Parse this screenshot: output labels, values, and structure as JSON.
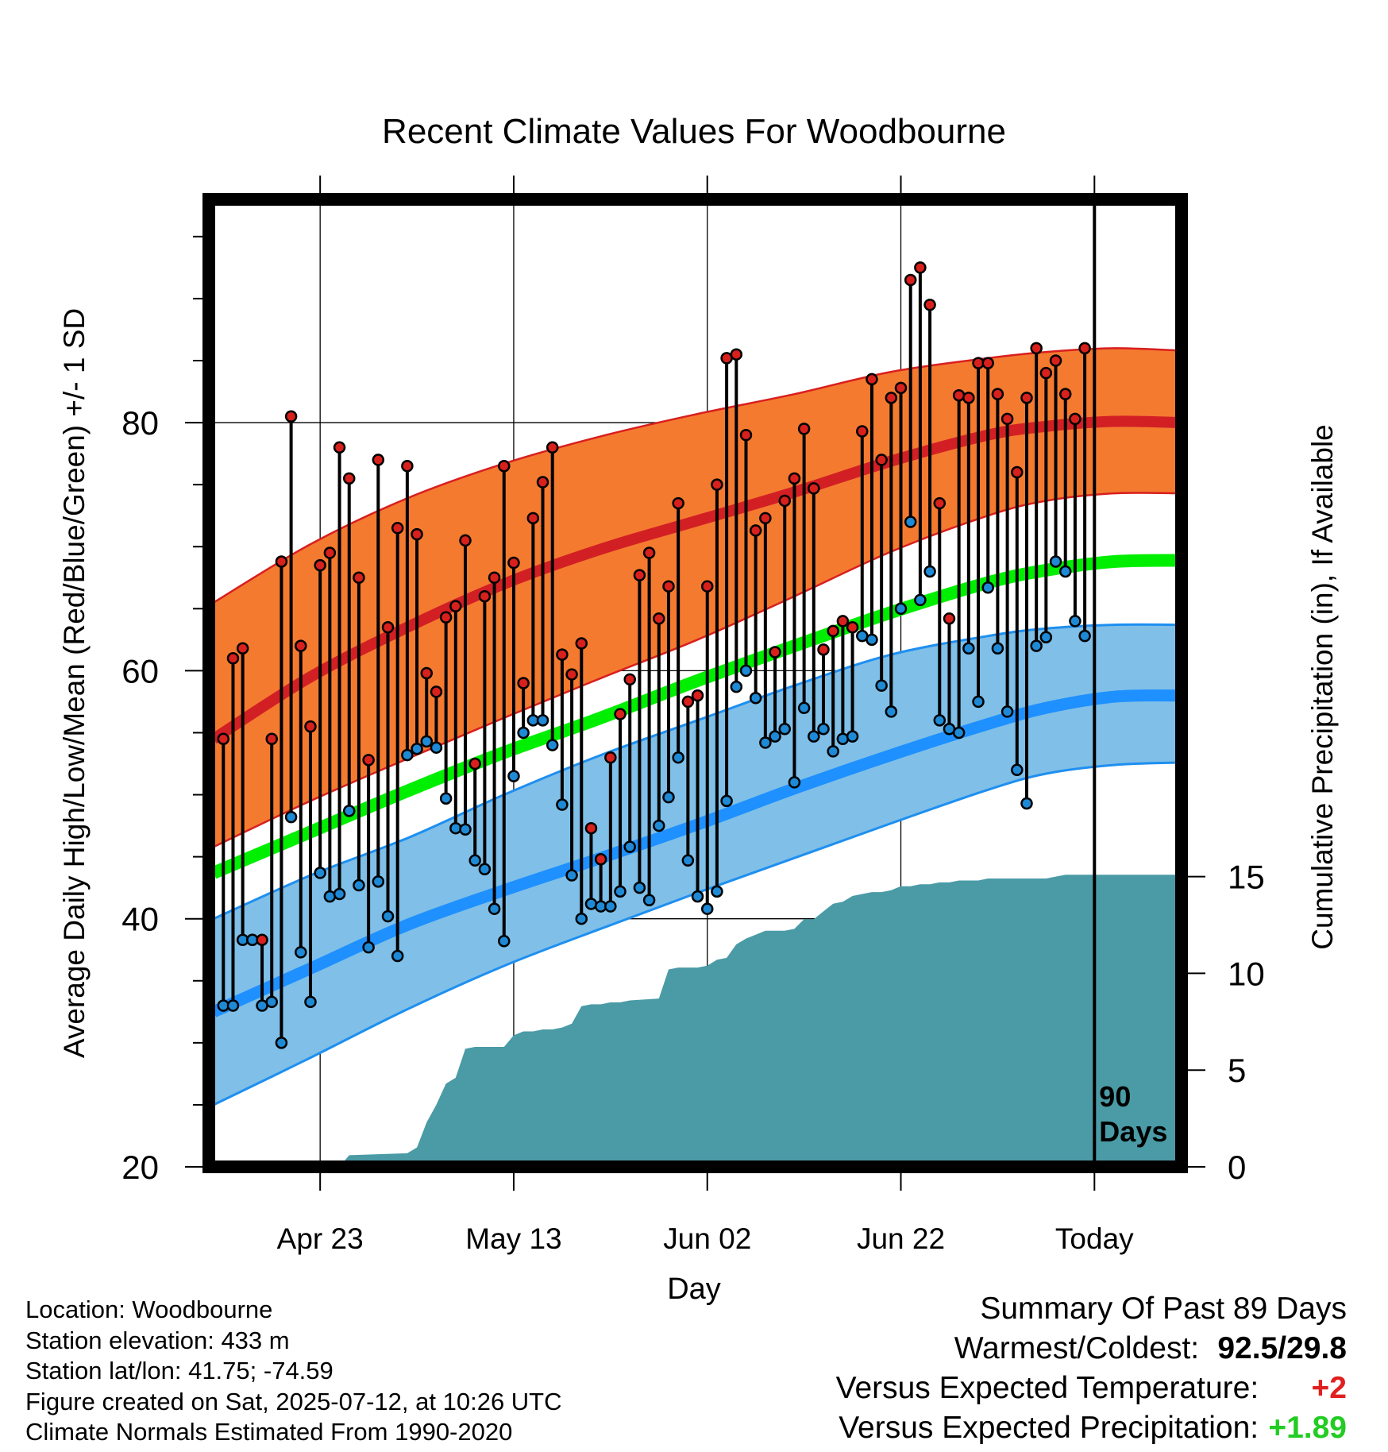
{
  "chart_data": {
    "type": "line",
    "title": "Recent Climate Values For Woodbourne",
    "xlabel": "Day",
    "ylabel_left": "Average Daily High/Low/Mean (Red/Blue/Green) +/- 1 SD",
    "ylabel_right": "Cumulative Precipitation (in), If Available",
    "x_tick_labels": [
      "Apr 23",
      "May 13",
      "Jun 02",
      "Jun 22",
      "Today"
    ],
    "x_tick_days": [
      10,
      30,
      50,
      70,
      90
    ],
    "y_left_ticks": [
      20,
      40,
      60,
      80
    ],
    "y_right_ticks": [
      0,
      5,
      10,
      15
    ],
    "ylim_left": [
      20,
      98
    ],
    "ylim_right": [
      0,
      50
    ],
    "xlim": [
      -1.5,
      99
    ],
    "today_marker_label_line1": "90",
    "today_marker_label_line2": "Days",
    "grid": true,
    "colors": {
      "high_band": "#f47a30",
      "high_band_edge": "#d81f1f",
      "high_mean": "#d21f24",
      "low_band": "#7fbfe8",
      "low_band_edge": "#1e8ff0",
      "low_mean": "#1e90ff",
      "mean_line": "#00ee00",
      "precip_fill": "#4a9ba6",
      "high_dot": "#d8201c",
      "low_dot": "#1e8ad6"
    },
    "normals": {
      "days": [
        -1,
        9,
        19,
        29,
        39,
        49,
        59,
        69,
        79,
        85,
        92,
        99
      ],
      "high_mean": [
        54.5,
        59.5,
        63.5,
        67.0,
        69.8,
        72.1,
        74.4,
        76.9,
        79.0,
        79.7,
        80.1,
        80.0
      ],
      "high_upper": [
        65.5,
        70.2,
        73.9,
        76.7,
        78.9,
        80.7,
        82.3,
        84.1,
        85.2,
        85.7,
        86.0,
        85.8
      ],
      "high_lower": [
        45.8,
        49.5,
        52.9,
        56.2,
        59.4,
        62.5,
        66.0,
        69.6,
        72.5,
        73.7,
        74.3,
        74.3
      ],
      "mean_line": [
        43.7,
        47.0,
        50.3,
        53.4,
        56.2,
        59.2,
        62.0,
        64.7,
        67.1,
        68.1,
        68.8,
        68.9
      ],
      "low_mean": [
        32.5,
        36.0,
        39.5,
        42.3,
        44.9,
        47.6,
        50.5,
        53.2,
        55.7,
        57.0,
        57.9,
        58.0
      ],
      "low_upper": [
        40.0,
        43.5,
        46.5,
        50.0,
        53.2,
        56.0,
        58.8,
        61.3,
        62.8,
        63.4,
        63.7,
        63.7
      ],
      "low_lower": [
        25.0,
        28.8,
        32.7,
        36.2,
        39.2,
        42.1,
        44.9,
        47.7,
        50.4,
        51.7,
        52.4,
        52.6
      ]
    },
    "series": [
      {
        "name": "High",
        "values": [
          54.5,
          61.0,
          61.8,
          38.3,
          38.3,
          54.5,
          68.8,
          80.5,
          62.0,
          55.5,
          68.5,
          69.5,
          78.0,
          75.5,
          67.5,
          52.8,
          77.0,
          63.5,
          71.5,
          76.5,
          71.0,
          59.8,
          58.3,
          64.3,
          65.2,
          70.5,
          52.5,
          66.0,
          67.5,
          76.5,
          68.7,
          59.0,
          72.3,
          75.2,
          78.0,
          61.3,
          59.7,
          62.2,
          47.3,
          44.8,
          53.0,
          56.5,
          59.3,
          67.7,
          69.5,
          64.2,
          66.8,
          73.5,
          57.5,
          58.0,
          66.8,
          75.0,
          85.2,
          85.5,
          79.0,
          71.3,
          72.3,
          61.5,
          73.7,
          75.5,
          79.5,
          74.7,
          61.7,
          63.2,
          64.0,
          63.5,
          79.3,
          83.5,
          77.0,
          82.0,
          82.8,
          91.5,
          92.5,
          89.5,
          73.5,
          64.2,
          82.2,
          82.0,
          84.8,
          84.8,
          82.3,
          80.3,
          76.0,
          82.0,
          86.0,
          84.0,
          85.0,
          82.3,
          80.3,
          86.0
        ]
      },
      {
        "name": "Low",
        "values": [
          33.0,
          33.0,
          38.3,
          38.3,
          33.0,
          33.3,
          30.0,
          48.2,
          37.3,
          33.3,
          43.7,
          41.8,
          42.0,
          48.7,
          42.7,
          37.7,
          43.0,
          40.2,
          37.0,
          53.2,
          53.7,
          54.3,
          53.8,
          49.7,
          47.3,
          47.2,
          44.7,
          44.0,
          40.8,
          38.2,
          51.5,
          55.0,
          56.0,
          56.0,
          54.0,
          49.2,
          43.5,
          40.0,
          41.2,
          41.0,
          41.0,
          42.2,
          45.8,
          42.5,
          41.5,
          47.5,
          49.8,
          53.0,
          44.7,
          41.8,
          40.8,
          42.2,
          49.5,
          58.7,
          60.0,
          57.8,
          54.2,
          54.7,
          55.3,
          51.0,
          57.0,
          54.7,
          55.3,
          53.5,
          54.5,
          54.7,
          62.8,
          62.5,
          58.8,
          56.7,
          65.0,
          72.0,
          65.7,
          68.0,
          56.0,
          55.3,
          55.0,
          61.8,
          57.5,
          66.7,
          61.8,
          56.7,
          52.0,
          49.3,
          62.0,
          62.7,
          68.8,
          68.0,
          64.0,
          62.8
        ]
      }
    ],
    "precip": {
      "days": [
        12,
        13,
        19,
        20,
        21,
        22,
        23,
        24,
        25,
        26,
        27,
        28,
        29,
        30,
        31,
        32,
        33,
        34,
        35,
        36,
        37,
        38,
        39,
        40,
        41,
        42,
        45,
        46,
        47,
        48,
        49,
        50,
        51,
        52,
        53,
        54,
        55,
        56,
        57,
        58,
        59,
        60,
        61,
        62,
        63,
        64,
        65,
        66,
        67,
        68,
        69,
        70,
        71,
        72,
        73,
        74,
        75,
        76,
        77,
        78,
        79,
        80,
        81,
        85,
        86,
        87,
        88,
        99
      ],
      "cumulative": [
        0.0,
        0.6,
        0.7,
        1.0,
        2.3,
        3.2,
        4.3,
        4.6,
        6.1,
        6.2,
        6.2,
        6.2,
        6.2,
        6.8,
        7.0,
        7.0,
        7.1,
        7.1,
        7.2,
        7.4,
        8.3,
        8.4,
        8.4,
        8.5,
        8.5,
        8.6,
        8.7,
        10.2,
        10.3,
        10.3,
        10.3,
        10.4,
        10.7,
        10.8,
        11.5,
        11.8,
        12.0,
        12.2,
        12.2,
        12.2,
        12.3,
        12.8,
        12.8,
        13.2,
        13.6,
        13.7,
        14.0,
        14.1,
        14.2,
        14.2,
        14.3,
        14.5,
        14.5,
        14.6,
        14.6,
        14.7,
        14.7,
        14.8,
        14.8,
        14.8,
        14.9,
        14.9,
        14.9,
        14.9,
        15.0,
        15.1,
        15.1,
        15.1
      ]
    }
  },
  "info": {
    "location": "Location: Woodbourne",
    "elevation": "Station elevation: 433 m",
    "latlon": "Station lat/lon: 41.75; -74.59",
    "created": "Figure created on Sat, 2025-07-12, at 10:26 UTC",
    "normals": "Climate Normals Estimated From 1990-2020"
  },
  "summary": {
    "heading": "Summary Of Past 89 Days",
    "warmest_label": "Warmest/Coldest:",
    "warmest_value": "92.5/29.8",
    "temp_label": "Versus Expected Temperature:",
    "temp_value": "+2",
    "temp_color": "#e02020",
    "precip_label": "Versus Expected Precipitation:",
    "precip_value": "+1.89",
    "precip_color": "#22cc22"
  }
}
